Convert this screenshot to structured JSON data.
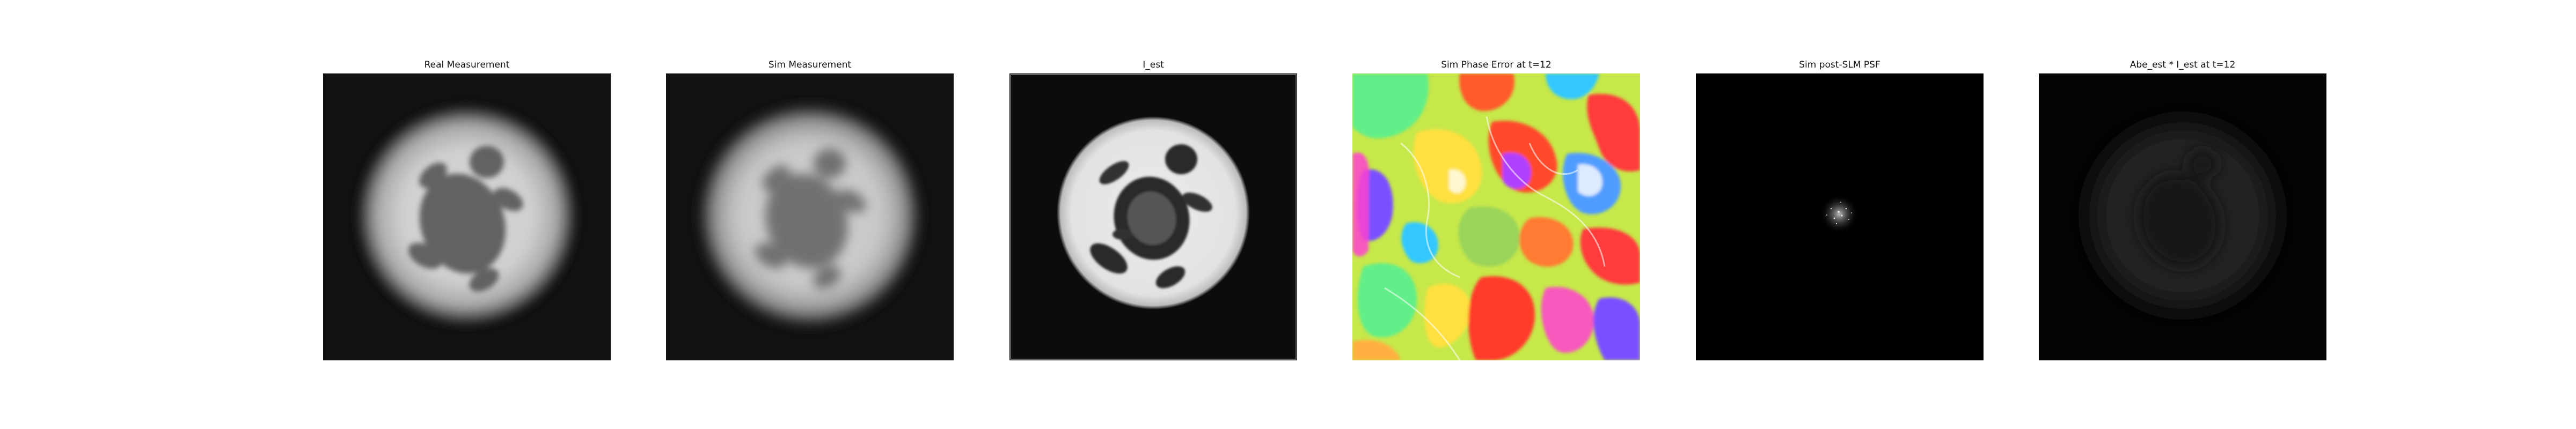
{
  "figure": {
    "panels": [
      {
        "title": "Real Measurement"
      },
      {
        "title": "Sim Measurement"
      },
      {
        "title": "I_est"
      },
      {
        "title": "Sim Phase Error at t=12"
      },
      {
        "title": "Sim post-SLM PSF"
      },
      {
        "title": "Abe_est * I_est at t=12"
      }
    ]
  }
}
